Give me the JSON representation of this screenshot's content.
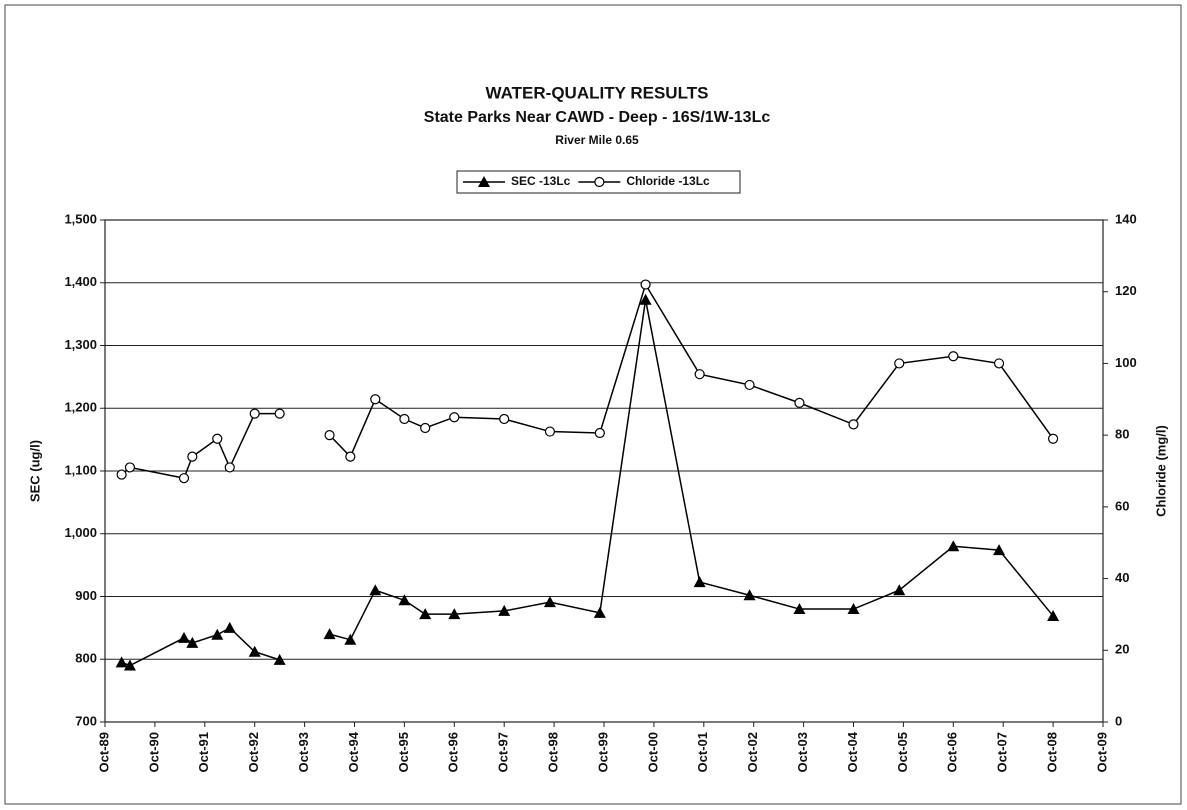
{
  "chart_data": {
    "type": "line",
    "title": "WATER-QUALITY RESULTS",
    "subtitle": "State Parks Near CAWD - Deep - 16S/1W-13Lc",
    "annotation": "River Mile 0.65",
    "y_label": "SEC (ug/l)",
    "y2_label": "Chloride (mg/l)",
    "x": [
      "1990-02",
      "1990-04",
      "1991-05",
      "1991-07",
      "1992-01",
      "1992-04",
      "1992-10",
      "1993-04",
      null,
      "1994-04",
      "1994-09",
      "1995-03",
      "1995-10",
      "1996-03",
      "1996-10",
      "1997-10",
      "1998-09",
      "1999-09",
      "2000-08",
      "2001-09",
      "2002-09",
      "2003-09",
      "2004-10",
      "2005-09",
      "2006-10",
      "2007-09",
      "2008-10"
    ],
    "series": [
      {
        "name": "SEC -13Lc",
        "color": "#000000",
        "marker": "triangle",
        "values": [
          795,
          790,
          834,
          826,
          839,
          850,
          812,
          799,
          null,
          840,
          831,
          910,
          894,
          872,
          872,
          877,
          891,
          874,
          1373,
          923,
          902,
          880,
          880,
          910,
          980,
          974,
          869
        ]
      },
      {
        "name": "Chloride -13Lc",
        "color": "#000000",
        "marker": "circle",
        "axis": "y2",
        "values": [
          69,
          71,
          68,
          74,
          79,
          71,
          86,
          86,
          null,
          80,
          74,
          90,
          84.5,
          82,
          85,
          84.5,
          81,
          80.6,
          122,
          97,
          94,
          89,
          83,
          100,
          102,
          100,
          79
        ]
      }
    ],
    "xlim": [
      "1989-10",
      "2009-10"
    ],
    "xticks": [
      {
        "value": "1989-10",
        "label": "Oct-89"
      },
      {
        "value": "1990-10",
        "label": "Oct-90"
      },
      {
        "value": "1991-10",
        "label": "Oct-91"
      },
      {
        "value": "1992-10",
        "label": "Oct-92"
      },
      {
        "value": "1993-10",
        "label": "Oct-93"
      },
      {
        "value": "1994-10",
        "label": "Oct-94"
      },
      {
        "value": "1995-10",
        "label": "Oct-95"
      },
      {
        "value": "1996-10",
        "label": "Oct-96"
      },
      {
        "value": "1997-10",
        "label": "Oct-97"
      },
      {
        "value": "1998-10",
        "label": "Oct-98"
      },
      {
        "value": "1999-10",
        "label": "Oct-99"
      },
      {
        "value": "2000-10",
        "label": "Oct-00"
      },
      {
        "value": "2001-10",
        "label": "Oct-01"
      },
      {
        "value": "2002-10",
        "label": "Oct-02"
      },
      {
        "value": "2003-10",
        "label": "Oct-03"
      },
      {
        "value": "2004-10",
        "label": "Oct-04"
      },
      {
        "value": "2005-10",
        "label": "Oct-05"
      },
      {
        "value": "2006-10",
        "label": "Oct-06"
      },
      {
        "value": "2007-10",
        "label": "Oct-07"
      },
      {
        "value": "2008-10",
        "label": "Oct-08"
      },
      {
        "value": "2009-10",
        "label": "Oct-09"
      }
    ],
    "ylim": [
      700,
      1500
    ],
    "yticks": [
      700,
      800,
      900,
      {
        "value": 1000,
        "label": "1,000"
      },
      {
        "value": 1100,
        "label": "1,100"
      },
      {
        "value": 1200,
        "label": "1,200"
      },
      {
        "value": 1300,
        "label": "1,300"
      },
      {
        "value": 1400,
        "label": "1,400"
      },
      {
        "value": 1500,
        "label": "1,500"
      }
    ],
    "y2lim": [
      0,
      140
    ],
    "y2ticks": [
      0,
      20,
      40,
      60,
      80,
      100,
      120,
      140
    ],
    "grid": true,
    "legend": "top"
  }
}
